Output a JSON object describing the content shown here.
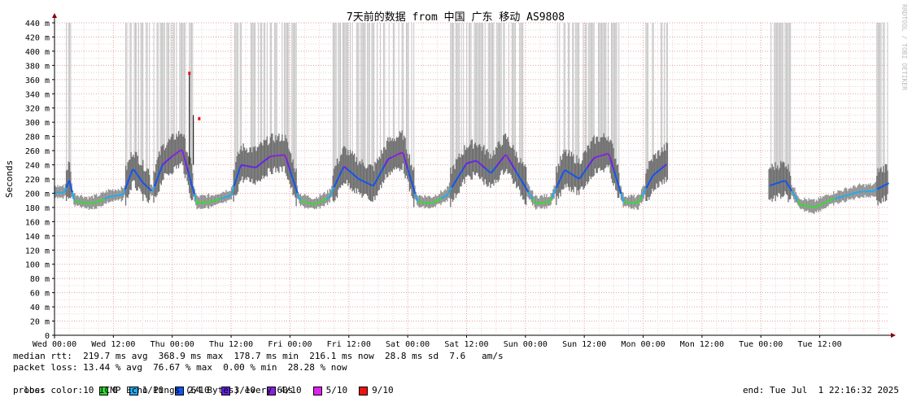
{
  "chart_data": {
    "type": "line",
    "title": "7天前的数据 from 中国 广东 移动 AS9808",
    "ylabel": "Seconds",
    "watermark": "RRDTOOL / TOBI OETIKER",
    "ylim": [
      0,
      440
    ],
    "xlim_hours": [
      0,
      170
    ],
    "y_ticks": [
      "0",
      "20 m",
      "40 m",
      "60 m",
      "80 m",
      "100 m",
      "120 m",
      "140 m",
      "160 m",
      "180 m",
      "200 m",
      "220 m",
      "240 m",
      "260 m",
      "280 m",
      "300 m",
      "320 m",
      "340 m",
      "360 m",
      "380 m",
      "400 m",
      "420 m",
      "440 m"
    ],
    "x_ticks": [
      "Wed 00:00",
      "Wed 12:00",
      "Thu 00:00",
      "Thu 12:00",
      "Fri 00:00",
      "Fri 12:00",
      "Sat 00:00",
      "Sat 12:00",
      "Sun 00:00",
      "Sun 12:00",
      "Mon 00:00",
      "Mon 12:00",
      "Tue 00:00",
      "Tue 12:00"
    ],
    "median_rtt": {
      "x_hours": [
        0,
        2,
        3,
        4,
        7,
        9,
        11,
        14,
        16,
        18,
        20,
        22,
        24,
        26,
        29,
        32,
        36,
        38,
        41,
        44,
        47,
        50,
        53,
        56,
        59,
        62,
        65,
        68,
        71,
        74,
        77,
        80,
        84,
        86,
        89,
        92,
        95,
        98,
        101,
        104,
        107,
        110,
        113,
        116,
        119,
        122,
        125,
        128,
        131,
        134,
        145.5,
        149,
        152,
        155,
        158,
        161,
        164,
        167,
        170
      ],
      "y_ms": [
        201,
        201,
        218,
        190,
        185,
        188,
        195,
        198,
        235,
        215,
        202,
        240,
        252,
        262,
        186,
        188,
        197,
        240,
        236,
        252,
        254,
        190,
        184,
        194,
        238,
        220,
        210,
        248,
        258,
        188,
        186,
        197,
        242,
        246,
        228,
        255,
        220,
        186,
        188,
        233,
        220,
        250,
        256,
        188,
        186,
        225,
        242,
        238,
        236,
        252,
        210,
        218,
        184,
        180,
        190,
        196,
        202,
        203,
        214
      ]
    },
    "gaps_hours": [
      [
        125,
        145.5
      ]
    ],
    "spike": {
      "x_hours": 27.5,
      "y_ms": 368.9
    },
    "loss_colors": [
      "#33dd33",
      "#22aaee",
      "#1155ee",
      "#6622ee",
      "#8822dd",
      "#dd22ee",
      "#ee1111"
    ]
  },
  "legend": {
    "rtt_line": "median rtt:  219.7 ms avg  368.9 ms max  178.7 ms min  216.1 ms now  28.8 ms sd  7.6   am/s",
    "loss_line": "packet loss: 13.44 % avg  76.67 % max  0.00 % min  28.28 % now",
    "loss_color_label": "loss color:",
    "loss_items": [
      {
        "label": "0",
        "color": "#33dd33"
      },
      {
        "label": "1/10",
        "color": "#22aaee"
      },
      {
        "label": "2/10",
        "color": "#1155ee"
      },
      {
        "label": "3/10",
        "color": "#6622ee"
      },
      {
        "label": "4/10",
        "color": "#8822dd"
      },
      {
        "label": "5/10",
        "color": "#dd22ee"
      },
      {
        "label": "9/10",
        "color": "#ee1111"
      }
    ],
    "probe": "probe:       10 ICMP Echo Pings (64 Bytes) every 60s",
    "end": "end: Tue Jul  1 22:16:32 2025"
  }
}
